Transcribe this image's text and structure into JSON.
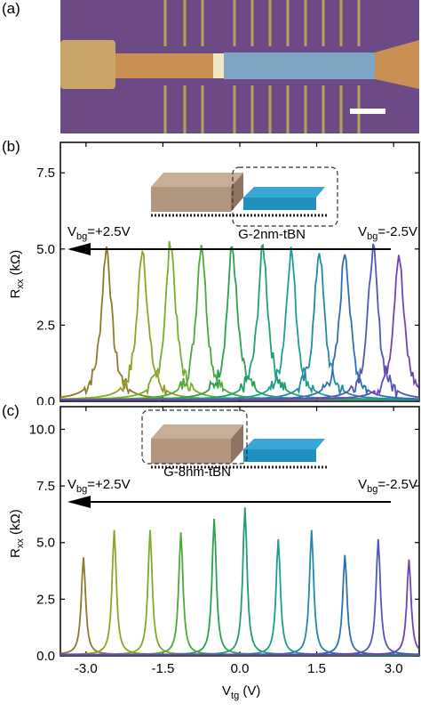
{
  "panel_labels": {
    "a": "(a)",
    "b": "(b)",
    "c": "(c)"
  },
  "micrograph": {
    "description_icon": "optical-micrograph"
  },
  "colors": {
    "micro_bg": "#6b4a86",
    "micro_trace": "#b8a25a",
    "micro_gold": "#c98f53",
    "micro_blue": "#7ea6c4",
    "scale_bar": "#ffffff",
    "arrow": "#000000",
    "block_left": "#b39680",
    "block_right": "#1f8fbe",
    "curve_colors": [
      "#8a7d28",
      "#94a126",
      "#7dac2a",
      "#4fa83a",
      "#2fa04f",
      "#20a072",
      "#1f9d92",
      "#2389a6",
      "#2f6fb2",
      "#5057b5",
      "#6f45b4"
    ]
  },
  "chart_data": [
    {
      "type": "line",
      "panel": "(b)",
      "ylabel": "R",
      "ylabel_sub": "xx",
      "ylabel_unit": "(kΩ)",
      "xlim": [
        -3.5,
        3.5
      ],
      "ylim": [
        0,
        8.5
      ],
      "yticks": [
        "0.0",
        "2.5",
        "5.0",
        "7.5"
      ],
      "ytick_values": [
        0,
        2.5,
        5.0,
        7.5
      ],
      "inset_label": "G-2nm-tBN",
      "annotation_left": {
        "main": "V",
        "sub": "bg",
        "rest": "=+2.5V"
      },
      "annotation_right": {
        "main": "V",
        "sub": "bg",
        "rest": "=-2.5V"
      },
      "series": [
        {
          "peak_x": -2.6,
          "peak_y": 5.0
        },
        {
          "peak_x": -1.9,
          "peak_y": 5.0
        },
        {
          "peak_x": -1.35,
          "peak_y": 5.2
        },
        {
          "peak_x": -0.75,
          "peak_y": 5.15
        },
        {
          "peak_x": -0.15,
          "peak_y": 5.0
        },
        {
          "peak_x": 0.45,
          "peak_y": 5.0
        },
        {
          "peak_x": 1.0,
          "peak_y": 4.9
        },
        {
          "peak_x": 1.55,
          "peak_y": 4.9
        },
        {
          "peak_x": 2.05,
          "peak_y": 4.9
        },
        {
          "peak_x": 2.6,
          "peak_y": 4.95
        },
        {
          "peak_x": 3.1,
          "peak_y": 4.8
        }
      ]
    },
    {
      "type": "line",
      "panel": "(c)",
      "xlabel": "V",
      "xlabel_sub": "tg",
      "xlabel_unit": "(V)",
      "ylabel": "R",
      "ylabel_sub": "xx",
      "ylabel_unit": "(kΩ)",
      "xlim": [
        -3.5,
        3.5
      ],
      "ylim": [
        0,
        11.0
      ],
      "xticks": [
        "-3.0",
        "-1.5",
        "0.0",
        "1.5",
        "3.0"
      ],
      "xtick_values": [
        -3.0,
        -1.5,
        0.0,
        1.5,
        3.0
      ],
      "yticks": [
        "0.0",
        "2.5",
        "5.0",
        "7.5",
        "10.0"
      ],
      "ytick_values": [
        0,
        2.5,
        5.0,
        7.5,
        10.0
      ],
      "inset_label": "G-8nm-tBN",
      "annotation_left": {
        "main": "V",
        "sub": "bg",
        "rest": "=+2.5V"
      },
      "annotation_right": {
        "main": "V",
        "sub": "bg",
        "rest": "=-2.5V"
      },
      "series": [
        {
          "peak_x": -3.05,
          "peak_y": 4.3
        },
        {
          "peak_x": -2.45,
          "peak_y": 5.5
        },
        {
          "peak_x": -1.75,
          "peak_y": 5.5
        },
        {
          "peak_x": -1.15,
          "peak_y": 5.4
        },
        {
          "peak_x": -0.5,
          "peak_y": 6.0
        },
        {
          "peak_x": 0.1,
          "peak_y": 6.5
        },
        {
          "peak_x": 0.75,
          "peak_y": 5.1
        },
        {
          "peak_x": 1.4,
          "peak_y": 5.5
        },
        {
          "peak_x": 2.05,
          "peak_y": 4.4
        },
        {
          "peak_x": 2.7,
          "peak_y": 5.1
        },
        {
          "peak_x": 3.3,
          "peak_y": 4.2
        }
      ]
    }
  ]
}
